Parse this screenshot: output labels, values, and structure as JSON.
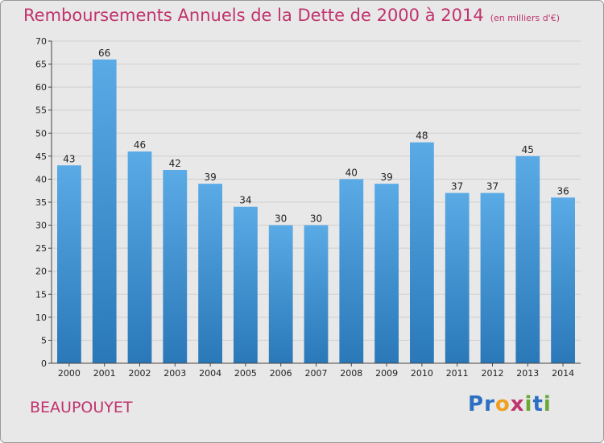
{
  "chart_data": {
    "type": "bar",
    "title": "Remboursements Annuels de la Dette de 2000 à 2014",
    "unit": "(en milliers d'€)",
    "categories": [
      "2000",
      "2001",
      "2002",
      "2003",
      "2004",
      "2005",
      "2006",
      "2007",
      "2008",
      "2009",
      "2010",
      "2011",
      "2012",
      "2013",
      "2014"
    ],
    "values": [
      43,
      66,
      46,
      42,
      39,
      34,
      30,
      30,
      40,
      39,
      48,
      37,
      37,
      45,
      36
    ],
    "ylim": [
      0,
      70
    ],
    "yticks": [
      0,
      5,
      10,
      15,
      20,
      25,
      30,
      35,
      40,
      45,
      50,
      55,
      60,
      65,
      70
    ],
    "grid": true,
    "bar_color_top": "#5aaae6",
    "bar_color_bottom": "#2a78b8"
  },
  "commune": "BEAUPOUYET",
  "logo": {
    "text": "Proxiti",
    "letters": [
      "P",
      "r",
      "o",
      "x",
      "i",
      "t",
      "i"
    ],
    "colors": [
      "#2d6fc2",
      "#2d6fc2",
      "#f0a020",
      "#c0336d",
      "#6aa838",
      "#2d6fc2",
      "#6aa838"
    ]
  }
}
